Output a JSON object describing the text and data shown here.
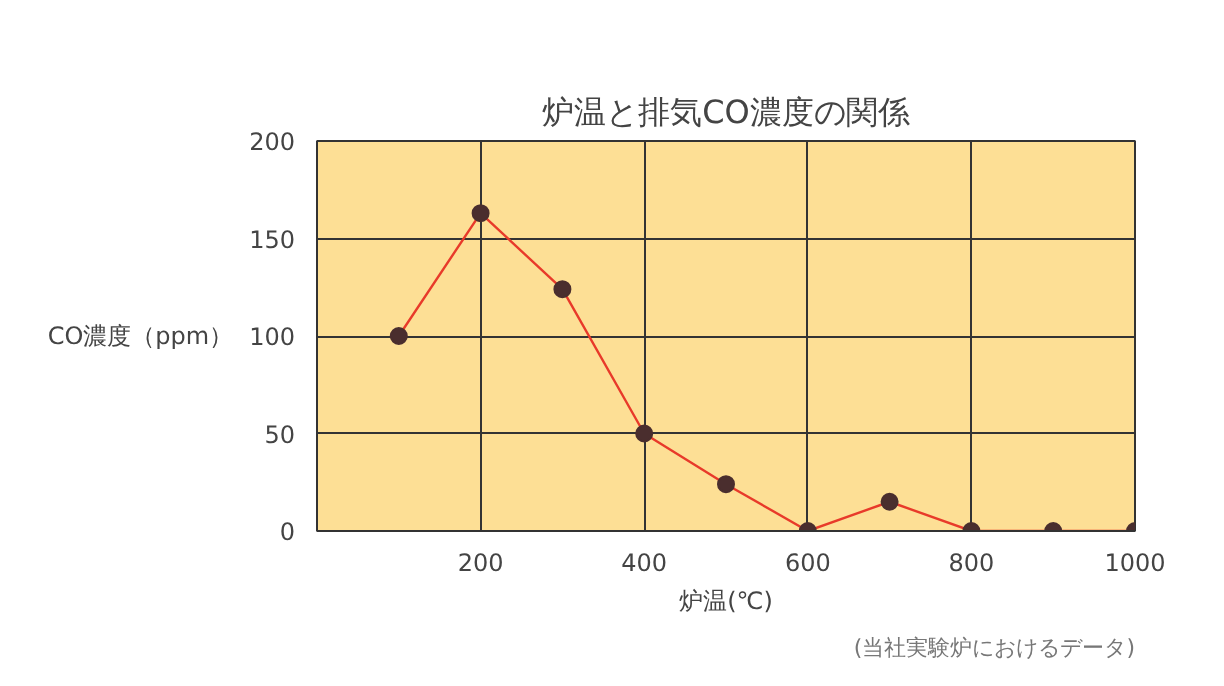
{
  "chart_data": {
    "type": "line",
    "title": "炉温と排気CO濃度の関係",
    "xlabel": "炉温(℃)",
    "ylabel": "CO濃度（ppm）",
    "x": [
      100,
      200,
      300,
      400,
      500,
      600,
      700,
      800,
      900,
      1000
    ],
    "series": [
      {
        "color": "#e83a2a",
        "values": [
          100,
          163,
          124,
          50,
          24,
          0,
          15,
          0,
          0,
          0
        ]
      }
    ],
    "xlim": [
      0,
      1000
    ],
    "xticks": [
      200,
      400,
      600,
      800,
      1000
    ],
    "ylim": [
      0,
      200
    ],
    "yticks": [
      0,
      50,
      100,
      150,
      200
    ],
    "grid": true,
    "marker": "circle",
    "line_style": "solid",
    "annotations": [
      "(当社実験炉におけるデータ)"
    ]
  }
}
